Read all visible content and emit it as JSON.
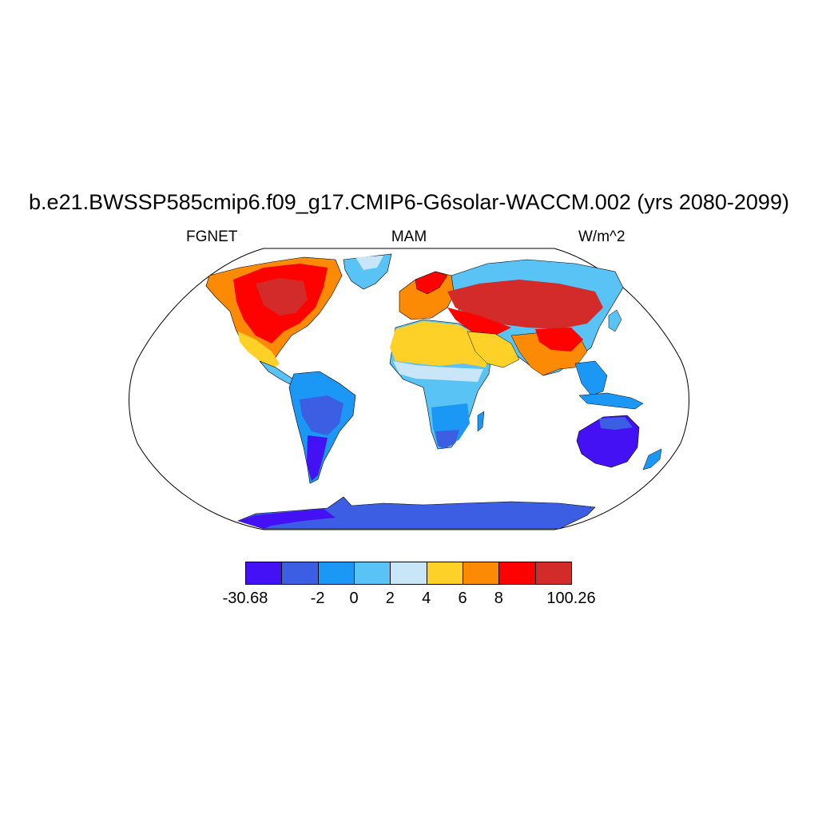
{
  "figure": {
    "title": "b.e21.BWSSP585cmip6.f09_g17.CMIP6-G6solar-WACCM.002 (yrs 2080-2099)",
    "left_label": "FGNET",
    "center_label": "MAM",
    "right_label": "W/m^2",
    "projection": "Robinson"
  },
  "colorbar": {
    "colors": [
      "#4411f5",
      "#3c5ee2",
      "#1b97f5",
      "#58c3f4",
      "#c8e6f8",
      "#fdd127",
      "#fd8a04",
      "#fe0202",
      "#d32a2a"
    ],
    "tick_labels": [
      "-30.68",
      "-2",
      "0",
      "2",
      "4",
      "6",
      "8",
      "100.26"
    ],
    "boundaries": [
      -30.68,
      -4,
      -2,
      0,
      2,
      4,
      6,
      8,
      10,
      100.26
    ]
  },
  "regions": [
    {
      "name": "North America (north/east)",
      "class": 8
    },
    {
      "name": "North America (south/west)",
      "class": 5
    },
    {
      "name": "Central America",
      "class": 3
    },
    {
      "name": "Greenland",
      "class": 3
    },
    {
      "name": "South America",
      "class": 2
    },
    {
      "name": "Patagonia",
      "class": 0
    },
    {
      "name": "Sahara",
      "class": 5
    },
    {
      "name": "Sahel",
      "class": 4
    },
    {
      "name": "Central Africa",
      "class": 3
    },
    {
      "name": "Southern Africa",
      "class": 2
    },
    {
      "name": "Europe",
      "class": 6
    },
    {
      "name": "Siberia",
      "class": 3
    },
    {
      "name": "Central Asia",
      "class": 8
    },
    {
      "name": "Middle East",
      "class": 5
    },
    {
      "name": "South Asia",
      "class": 6
    },
    {
      "name": "Southeast Asia",
      "class": 2
    },
    {
      "name": "Australia",
      "class": 0
    },
    {
      "name": "Antarctica",
      "class": 1
    }
  ]
}
